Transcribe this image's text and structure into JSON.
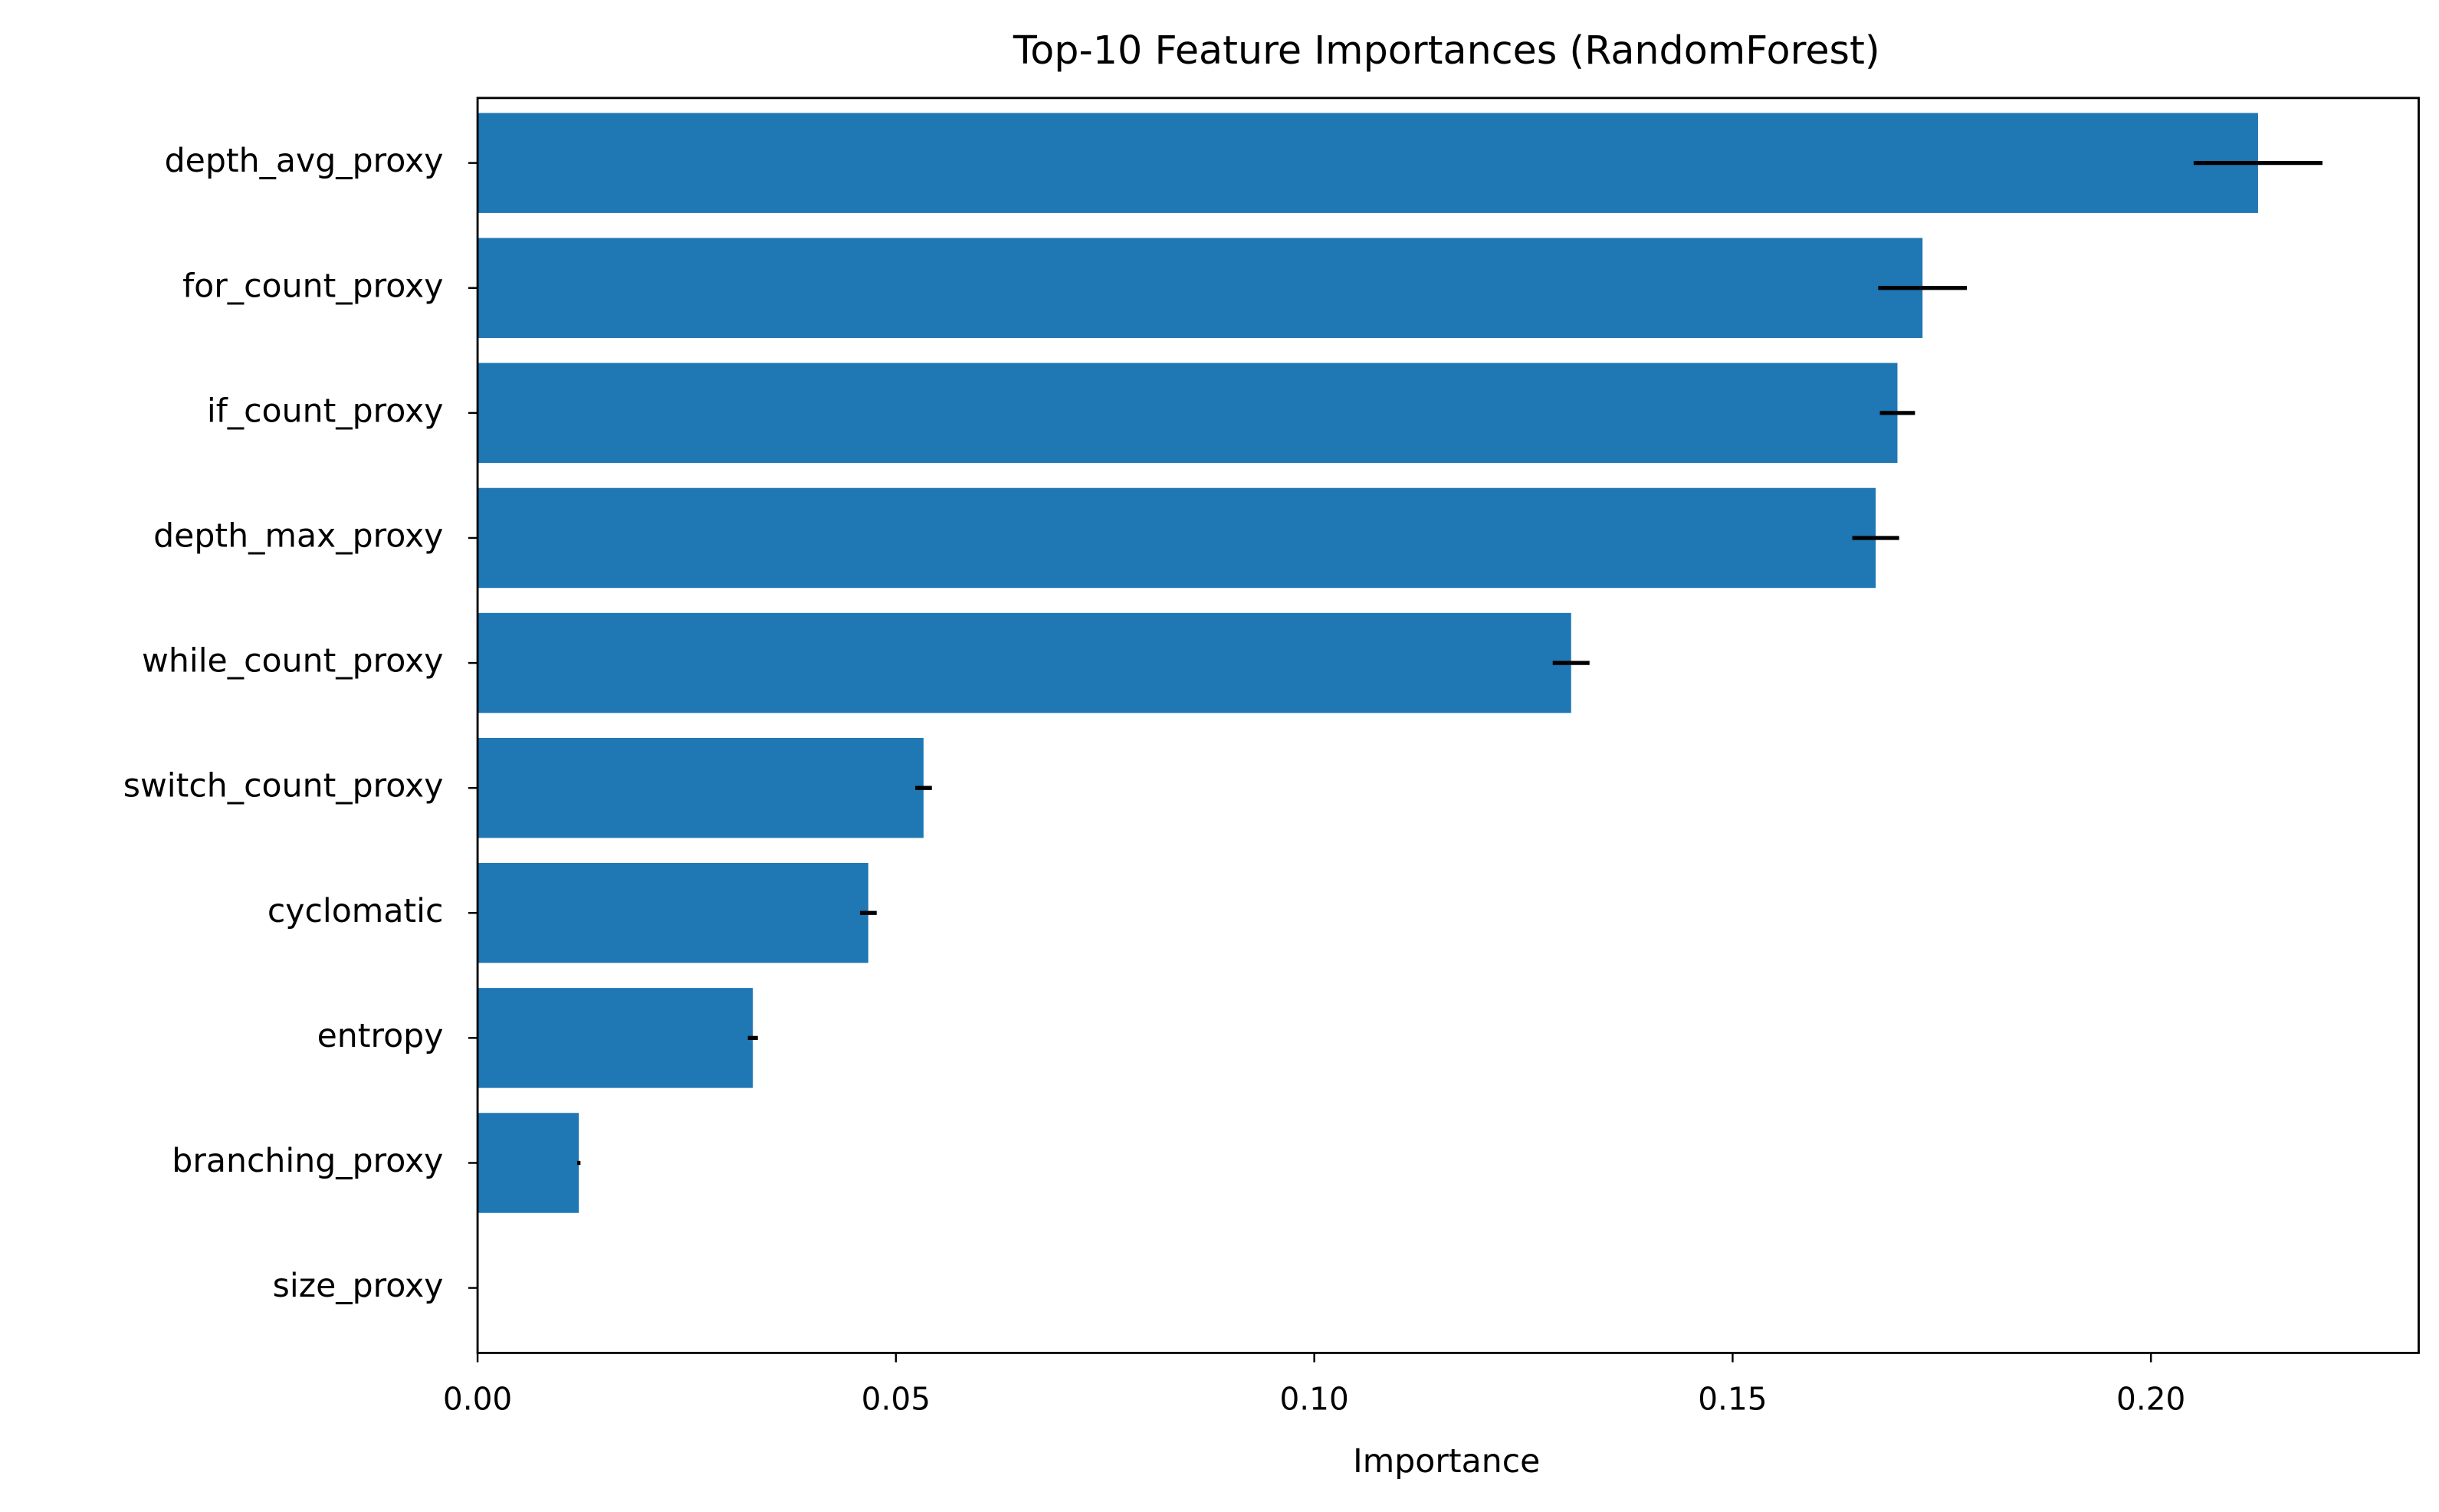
{
  "chart_data": {
    "type": "bar",
    "orientation": "horizontal",
    "title": "Top-10 Feature Importances (RandomForest)",
    "xlabel": "Importance",
    "categories": [
      "depth_avg_proxy",
      "for_count_proxy",
      "if_count_proxy",
      "depth_max_proxy",
      "while_count_proxy",
      "switch_count_proxy",
      "cyclomatic",
      "entropy",
      "branching_proxy",
      "size_proxy"
    ],
    "values": [
      0.2128,
      0.1727,
      0.1697,
      0.1671,
      0.1307,
      0.0533,
      0.0467,
      0.0329,
      0.0121,
      0
    ],
    "errors": [
      0.0077,
      0.0053,
      0.0021,
      0.0028,
      0.0022,
      0.001,
      0.001,
      0.0006,
      0.0002,
      0
    ],
    "color": "#1f77b4",
    "error_color": "#000000",
    "xlim": [
      0,
      0.232
    ],
    "xticks": [
      {
        "value": 0,
        "label": "0.00"
      },
      {
        "value": 0.05,
        "label": "0.05"
      },
      {
        "value": 0.1,
        "label": "0.10"
      },
      {
        "value": 0.15,
        "label": "0.15"
      },
      {
        "value": 0.2,
        "label": "0.20"
      }
    ],
    "grid": false
  }
}
